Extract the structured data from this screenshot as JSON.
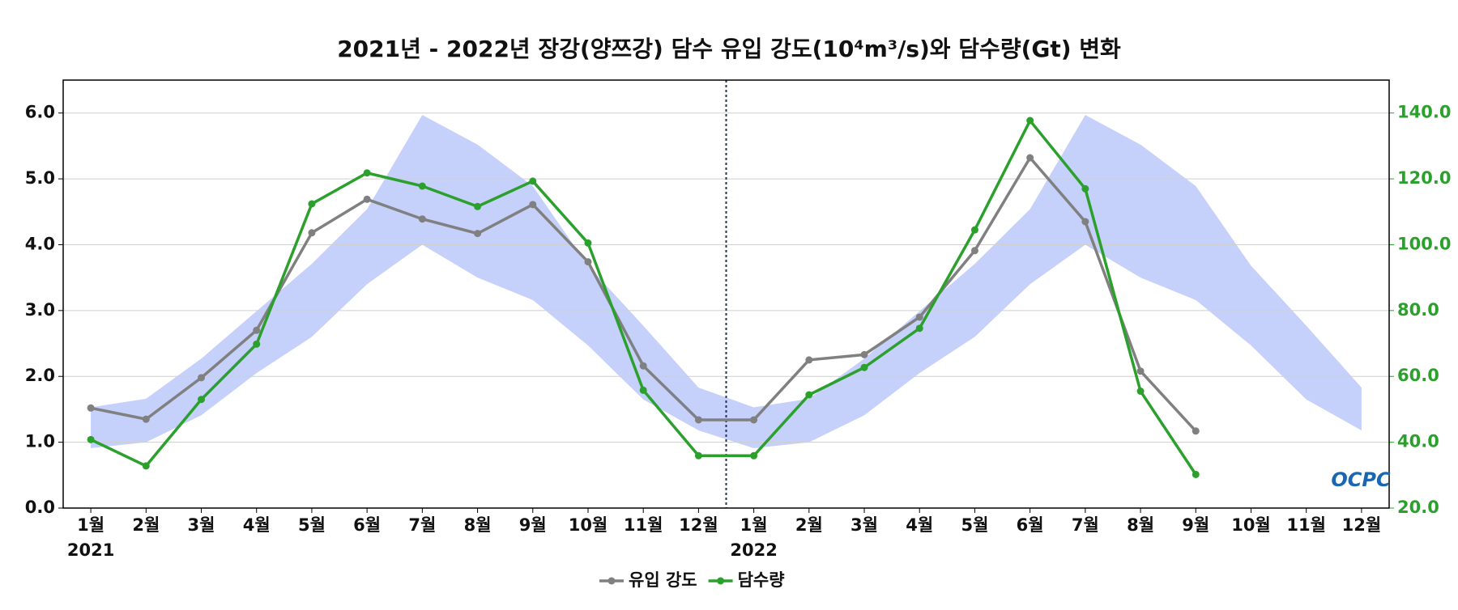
{
  "chart_data": {
    "type": "line",
    "title": "2021년 - 2022년 장강(양쯔강) 담수 유입 강도(10⁴m³/s)와 담수량(Gt) 변화",
    "categories": [
      "1월",
      "2월",
      "3월",
      "4월",
      "5월",
      "6월",
      "7월",
      "8월",
      "9월",
      "10월",
      "11월",
      "12월",
      "1월",
      "2월",
      "3월",
      "4월",
      "5월",
      "6월",
      "7월",
      "8월",
      "9월",
      "10월",
      "11월",
      "12월"
    ],
    "year_labels": [
      "2021",
      "2022"
    ],
    "ylim": [
      0,
      6.5
    ],
    "yticks": [
      {
        "value": 0,
        "label": "0.0"
      },
      {
        "value": 1,
        "label": "1.0"
      },
      {
        "value": 2,
        "label": "2.0"
      },
      {
        "value": 3,
        "label": "3.0"
      },
      {
        "value": 4,
        "label": "4.0"
      },
      {
        "value": 5,
        "label": "5.0"
      },
      {
        "value": 6,
        "label": "6.0"
      }
    ],
    "y2lim": [
      20,
      150
    ],
    "y2ticks": [
      {
        "value": 20,
        "label": "20.0"
      },
      {
        "value": 40,
        "label": "40.0"
      },
      {
        "value": 60,
        "label": "60.0"
      },
      {
        "value": 80,
        "label": "80.0"
      },
      {
        "value": 100,
        "label": "100.0"
      },
      {
        "value": 120,
        "label": "120.0"
      },
      {
        "value": 140,
        "label": "140.0"
      }
    ],
    "y2color": "#2ca02c",
    "grid": true,
    "band": {
      "color": "#c5d0fb",
      "lower": [
        0.91,
        1.0,
        1.41,
        2.05,
        2.6,
        3.4,
        4.0,
        3.5,
        3.16,
        2.47,
        1.65,
        1.18,
        0.91,
        1.0,
        1.41,
        2.05,
        2.6,
        3.4,
        4.0,
        3.5,
        3.16,
        2.47,
        1.65,
        1.18
      ],
      "upper": [
        1.53,
        1.66,
        2.27,
        2.99,
        3.71,
        4.54,
        5.97,
        5.52,
        4.89,
        3.68,
        2.77,
        1.83,
        1.53,
        1.66,
        2.27,
        2.99,
        3.71,
        4.54,
        5.97,
        5.52,
        4.89,
        3.68,
        2.77,
        1.83
      ]
    },
    "series": [
      {
        "name": "유입 강도",
        "color": "#808080",
        "values": [
          1.52,
          1.35,
          1.98,
          2.7,
          4.18,
          4.69,
          4.39,
          4.17,
          4.61,
          3.74,
          2.16,
          1.34,
          1.34,
          2.25,
          2.33,
          2.9,
          3.91,
          5.32,
          4.35,
          2.08,
          1.17,
          null,
          null,
          null
        ]
      },
      {
        "name": "담수량",
        "color": "#2ca02c",
        "axis": "y2",
        "values": [
          40.8,
          32.8,
          53.0,
          69.8,
          112.4,
          121.8,
          117.8,
          111.6,
          119.3,
          100.5,
          55.8,
          35.9,
          35.9,
          54.4,
          62.7,
          74.6,
          104.5,
          137.7,
          117.0,
          55.5,
          30.2,
          null,
          null,
          null
        ]
      }
    ],
    "legend": "bottom",
    "logo": "OCPC"
  }
}
